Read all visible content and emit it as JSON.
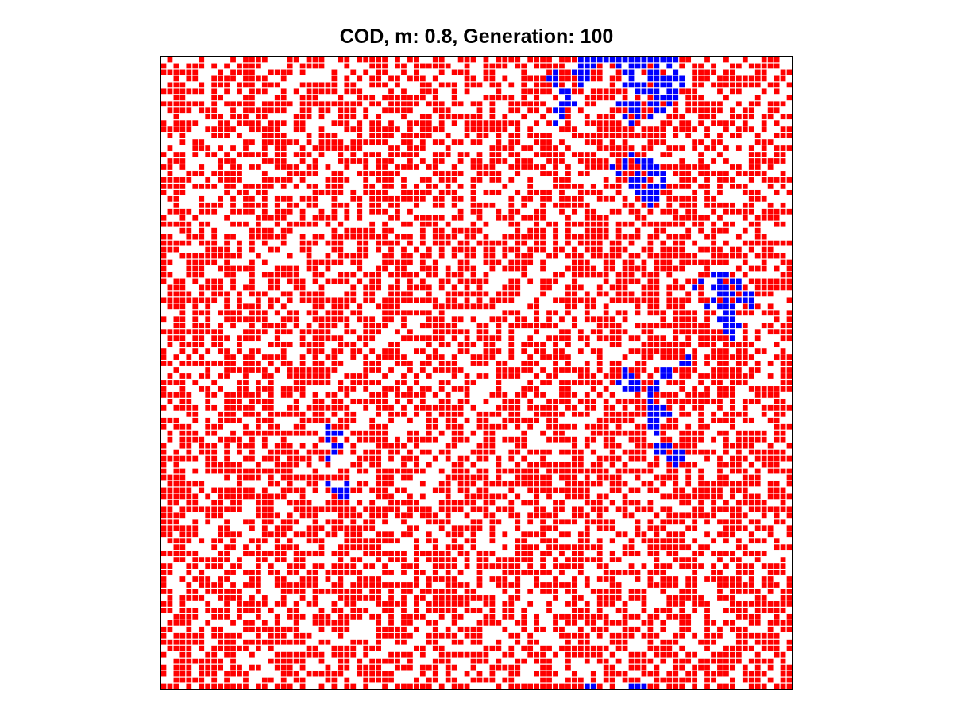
{
  "title": "COD, m: 0.8, Generation: 100",
  "chart_data": {
    "type": "heatmap",
    "title": "COD, m: 0.8, Generation: 100",
    "grid": {
      "rows": 100,
      "cols": 100
    },
    "states": [
      {
        "value": 0,
        "color": "#ffffff"
      },
      {
        "value": 1,
        "color": "#ff0000"
      },
      {
        "value": 2,
        "color": "#0000ff"
      }
    ],
    "occupancy": {
      "red_fraction": 0.6,
      "empty_fraction": 0.4
    },
    "blue_cells": [
      [
        0,
        66
      ],
      [
        0,
        67
      ],
      [
        0,
        68
      ],
      [
        0,
        69
      ],
      [
        0,
        70
      ],
      [
        0,
        71
      ],
      [
        0,
        72
      ],
      [
        0,
        73
      ],
      [
        0,
        74
      ],
      [
        0,
        75
      ],
      [
        0,
        76
      ],
      [
        0,
        77
      ],
      [
        0,
        78
      ],
      [
        0,
        79
      ],
      [
        0,
        80
      ],
      [
        0,
        81
      ],
      [
        1,
        66
      ],
      [
        1,
        67
      ],
      [
        1,
        68
      ],
      [
        1,
        72
      ],
      [
        1,
        74
      ],
      [
        1,
        75
      ],
      [
        1,
        76
      ],
      [
        1,
        78
      ],
      [
        1,
        80
      ],
      [
        2,
        62
      ],
      [
        2,
        65
      ],
      [
        2,
        66
      ],
      [
        2,
        67
      ],
      [
        2,
        73
      ],
      [
        2,
        74
      ],
      [
        2,
        77
      ],
      [
        2,
        78
      ],
      [
        2,
        81
      ],
      [
        3,
        61
      ],
      [
        3,
        62
      ],
      [
        3,
        66
      ],
      [
        3,
        67
      ],
      [
        3,
        74
      ],
      [
        3,
        77
      ],
      [
        3,
        78
      ],
      [
        3,
        79
      ],
      [
        3,
        80
      ],
      [
        3,
        81
      ],
      [
        3,
        82
      ],
      [
        4,
        62
      ],
      [
        4,
        66
      ],
      [
        4,
        73
      ],
      [
        4,
        74
      ],
      [
        4,
        75
      ],
      [
        4,
        76
      ],
      [
        4,
        78
      ],
      [
        4,
        79
      ],
      [
        4,
        80
      ],
      [
        4,
        82
      ],
      [
        5,
        63
      ],
      [
        5,
        64
      ],
      [
        5,
        75
      ],
      [
        5,
        76
      ],
      [
        5,
        77
      ],
      [
        5,
        78
      ],
      [
        5,
        80
      ],
      [
        5,
        81
      ],
      [
        6,
        64
      ],
      [
        6,
        78
      ],
      [
        6,
        79
      ],
      [
        6,
        80
      ],
      [
        6,
        81
      ],
      [
        7,
        63
      ],
      [
        7,
        64
      ],
      [
        7,
        65
      ],
      [
        7,
        72
      ],
      [
        7,
        73
      ],
      [
        7,
        74
      ],
      [
        7,
        75
      ],
      [
        7,
        77
      ],
      [
        7,
        78
      ],
      [
        7,
        80
      ],
      [
        8,
        62
      ],
      [
        8,
        63
      ],
      [
        8,
        74
      ],
      [
        8,
        75
      ],
      [
        8,
        78
      ],
      [
        8,
        79
      ],
      [
        9,
        63
      ],
      [
        9,
        73
      ],
      [
        9,
        75
      ],
      [
        9,
        77
      ],
      [
        10,
        62
      ],
      [
        10,
        74
      ],
      [
        15,
        74
      ],
      [
        16,
        73
      ],
      [
        16,
        75
      ],
      [
        16,
        76
      ],
      [
        16,
        77
      ],
      [
        17,
        71
      ],
      [
        17,
        73
      ],
      [
        17,
        76
      ],
      [
        17,
        77
      ],
      [
        17,
        78
      ],
      [
        18,
        72
      ],
      [
        18,
        75
      ],
      [
        18,
        77
      ],
      [
        18,
        78
      ],
      [
        18,
        79
      ],
      [
        19,
        74
      ],
      [
        19,
        75
      ],
      [
        19,
        76
      ],
      [
        19,
        79
      ],
      [
        20,
        74
      ],
      [
        20,
        75
      ],
      [
        20,
        77
      ],
      [
        20,
        78
      ],
      [
        20,
        79
      ],
      [
        21,
        75
      ],
      [
        21,
        76
      ],
      [
        21,
        77
      ],
      [
        21,
        78
      ],
      [
        22,
        76
      ],
      [
        22,
        77
      ],
      [
        22,
        78
      ],
      [
        23,
        77
      ],
      [
        34,
        87
      ],
      [
        34,
        88
      ],
      [
        34,
        89
      ],
      [
        35,
        85
      ],
      [
        35,
        88
      ],
      [
        35,
        90
      ],
      [
        35,
        91
      ],
      [
        36,
        84
      ],
      [
        36,
        87
      ],
      [
        36,
        88
      ],
      [
        36,
        89
      ],
      [
        36,
        91
      ],
      [
        37,
        88
      ],
      [
        37,
        89
      ],
      [
        37,
        90
      ],
      [
        37,
        92
      ],
      [
        37,
        93
      ],
      [
        38,
        87
      ],
      [
        38,
        89
      ],
      [
        38,
        91
      ],
      [
        38,
        92
      ],
      [
        38,
        93
      ],
      [
        39,
        86
      ],
      [
        39,
        88
      ],
      [
        39,
        89
      ],
      [
        39,
        90
      ],
      [
        39,
        93
      ],
      [
        40,
        89
      ],
      [
        40,
        90
      ],
      [
        41,
        88
      ],
      [
        41,
        89
      ],
      [
        41,
        90
      ],
      [
        42,
        89
      ],
      [
        42,
        90
      ],
      [
        42,
        91
      ],
      [
        43,
        89
      ],
      [
        43,
        90
      ],
      [
        44,
        90
      ],
      [
        47,
        83
      ],
      [
        48,
        82
      ],
      [
        48,
        83
      ],
      [
        49,
        73
      ],
      [
        49,
        79
      ],
      [
        49,
        80
      ],
      [
        50,
        73
      ],
      [
        50,
        74
      ],
      [
        50,
        79
      ],
      [
        50,
        80
      ],
      [
        51,
        72
      ],
      [
        51,
        74
      ],
      [
        51,
        75
      ],
      [
        51,
        78
      ],
      [
        52,
        73
      ],
      [
        52,
        74
      ],
      [
        52,
        75
      ],
      [
        52,
        77
      ],
      [
        52,
        78
      ],
      [
        53,
        77
      ],
      [
        54,
        77
      ],
      [
        55,
        77
      ],
      [
        55,
        78
      ],
      [
        55,
        79
      ],
      [
        56,
        77
      ],
      [
        56,
        78
      ],
      [
        56,
        79
      ],
      [
        56,
        80
      ],
      [
        57,
        77
      ],
      [
        57,
        78
      ],
      [
        58,
        26
      ],
      [
        58,
        77
      ],
      [
        58,
        78
      ],
      [
        59,
        26
      ],
      [
        59,
        27
      ],
      [
        59,
        28
      ],
      [
        59,
        78
      ],
      [
        60,
        26
      ],
      [
        61,
        27
      ],
      [
        61,
        28
      ],
      [
        61,
        78
      ],
      [
        61,
        79
      ],
      [
        61,
        80
      ],
      [
        62,
        27
      ],
      [
        62,
        78
      ],
      [
        62,
        79
      ],
      [
        62,
        81
      ],
      [
        62,
        82
      ],
      [
        63,
        26
      ],
      [
        63,
        80
      ],
      [
        63,
        81
      ],
      [
        63,
        82
      ],
      [
        64,
        81
      ],
      [
        67,
        26
      ],
      [
        67,
        29
      ],
      [
        68,
        27
      ],
      [
        68,
        28
      ],
      [
        68,
        29
      ],
      [
        69,
        28
      ],
      [
        69,
        29
      ],
      [
        99,
        67
      ],
      [
        99,
        68
      ],
      [
        99,
        74
      ],
      [
        99,
        75
      ],
      [
        99,
        76
      ]
    ]
  }
}
